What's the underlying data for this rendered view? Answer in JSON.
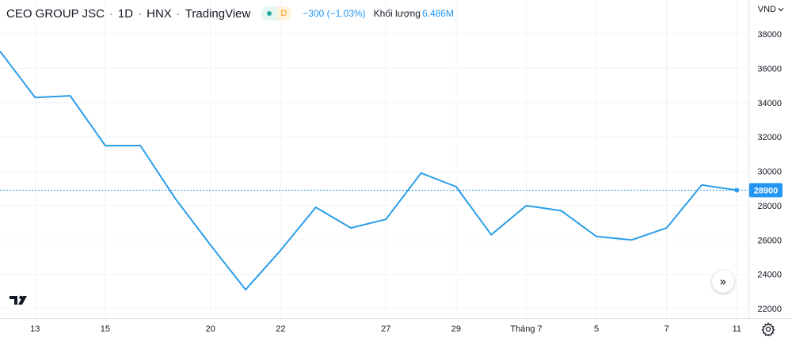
{
  "header": {
    "symbol": "CEO GROUP JSC",
    "interval": "1D",
    "exchange": "HNX",
    "source": "TradingView",
    "session_badge": "D",
    "change": "−300 (−1.03%)",
    "volume_label": "Khối lượng",
    "volume_value": "6.486M"
  },
  "currency": "VND",
  "colors": {
    "line": "#2b9de8",
    "accent": "#2196f3",
    "grid": "#f0f3fa",
    "axis_text": "#131722"
  },
  "icons": {
    "logo": "tradingview-logo-icon",
    "scroll": "double-chevron-right-icon",
    "settings": "gear-icon",
    "currency_menu": "chevron-down-icon"
  },
  "chart_data": {
    "type": "line",
    "title": "CEO GROUP JSC · 1D · HNX",
    "x": [
      "Jun 12",
      "Jun 13",
      "Jun 14",
      "Jun 15",
      "Jun 16",
      "Jun 19",
      "Jun 20",
      "Jun 21",
      "Jun 22",
      "Jun 23",
      "Jun 26",
      "Jun 27",
      "Jun 28",
      "Jun 29",
      "Jun 30",
      "Jul 3",
      "Jul 4",
      "Jul 5",
      "Jul 6",
      "Jul 7",
      "Jul 10",
      "Jul 11"
    ],
    "values": [
      37000,
      34300,
      34400,
      31500,
      31500,
      28400,
      25700,
      23100,
      25400,
      27900,
      26700,
      27200,
      29900,
      29100,
      26300,
      28000,
      27700,
      26200,
      26000,
      26700,
      29200,
      28900
    ],
    "last_price": "28900",
    "x_tick_labels": [
      "13",
      "15",
      "20",
      "22",
      "27",
      "29",
      "Tháng 7",
      "5",
      "7",
      "11"
    ],
    "y_tick_labels": [
      "22000",
      "24000",
      "26000",
      "28000",
      "30000",
      "32000",
      "34000",
      "36000",
      "38000"
    ],
    "ylim": [
      22000,
      38000
    ],
    "grid": true,
    "legend": "none"
  }
}
